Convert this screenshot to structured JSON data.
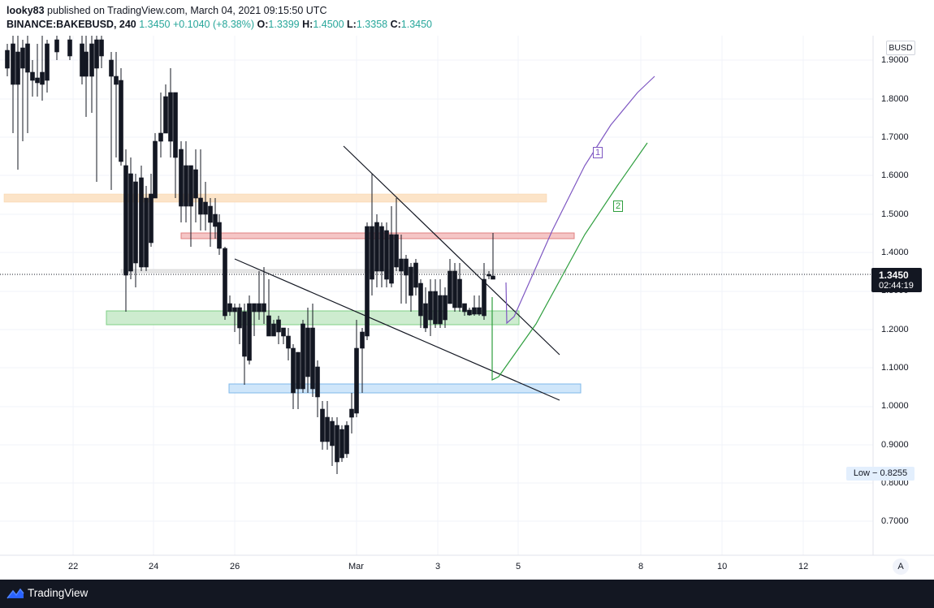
{
  "header": {
    "author": "looky83",
    "published_text": "published on TradingView.com, March 04, 2021 09:15:50 UTC",
    "symbol": "BINANCE:BAKEBUSD, 240",
    "last": "1.3450",
    "change": "+0.1040 (+8.38%)",
    "open_key": "O:",
    "open": "1.3399",
    "high_key": "H:",
    "high": "1.4500",
    "low_key": "L:",
    "low": "1.3358",
    "close_key": "C:",
    "close": "1.3450"
  },
  "price_axis": {
    "currency": "BUSD",
    "ticks": [
      "1.9000",
      "1.8000",
      "1.7000",
      "1.6000",
      "1.5000",
      "1.4000",
      "1.3000",
      "1.2000",
      "1.1000",
      "1.0000",
      "0.9000",
      "0.8000",
      "0.7000"
    ],
    "last_price": "1.3450",
    "countdown": "02:44:19",
    "low_label": "Low − 0.8255"
  },
  "time_axis": {
    "ticks": [
      "22",
      "24",
      "26",
      "Mar",
      "3",
      "5",
      "8",
      "10",
      "12"
    ]
  },
  "annotations": {
    "wave_1": "1",
    "wave_2": "2"
  },
  "auto_button": "A",
  "footer": {
    "brand": "TradingView"
  },
  "colors": {
    "candle_up": "#f7a600",
    "candle_down": "#131722",
    "zone_orange": "#fce4c8",
    "zone_red": "#f5c6c6",
    "zone_green": "#cdeccf",
    "zone_blue": "#cfe6fa",
    "path_1": "#7e57c2",
    "path_2": "#2e9e3e"
  }
}
